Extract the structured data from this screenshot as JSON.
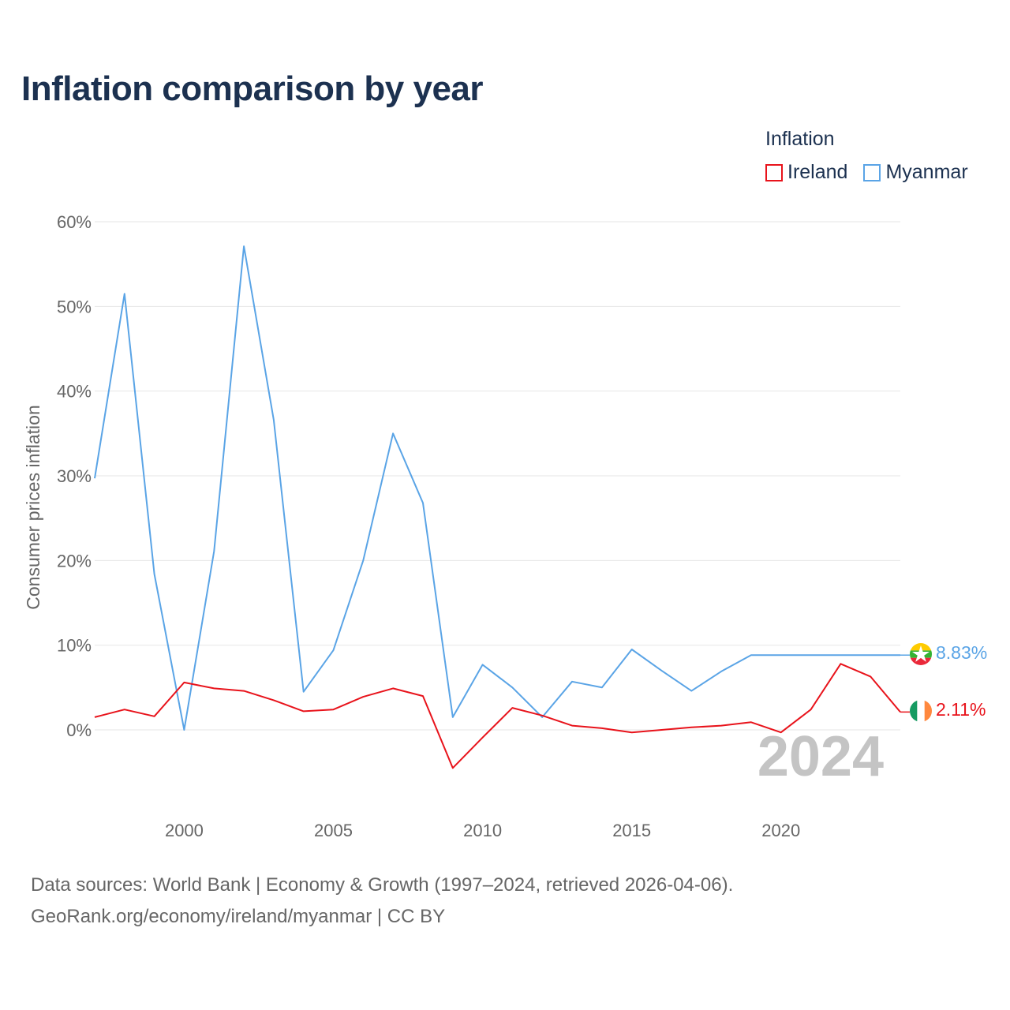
{
  "title": "Inflation comparison by year",
  "legend": {
    "title": "Inflation",
    "items": [
      {
        "label": "Ireland",
        "color": "#e8131b"
      },
      {
        "label": "Myanmar",
        "color": "#5aa4e6"
      }
    ]
  },
  "footer": {
    "line1": "Data sources: World Bank | Economy & Growth (1997–2024, retrieved 2026-04-06).",
    "line2": "GeoRank.org/economy/ireland/myanmar | CC BY"
  },
  "chart_data": {
    "type": "line",
    "title": "Inflation comparison by year",
    "xlabel": "",
    "ylabel": "Consumer prices inflation",
    "year_watermark": "2024",
    "xlim": [
      1997,
      2024
    ],
    "ylim": [
      -8,
      60
    ],
    "x_ticks": [
      2000,
      2005,
      2010,
      2015,
      2020
    ],
    "y_ticks": [
      0,
      10,
      20,
      30,
      40,
      50,
      60
    ],
    "y_tick_labels": [
      "0%",
      "10%",
      "20%",
      "30%",
      "40%",
      "50%",
      "60%"
    ],
    "grid": true,
    "legend_position": "top-right",
    "x": [
      1997,
      1998,
      1999,
      2000,
      2001,
      2002,
      2003,
      2004,
      2005,
      2006,
      2007,
      2008,
      2009,
      2010,
      2011,
      2012,
      2013,
      2014,
      2015,
      2016,
      2017,
      2018,
      2019,
      2020,
      2021,
      2022,
      2023,
      2024
    ],
    "series": [
      {
        "name": "Myanmar",
        "color": "#5aa4e6",
        "end_label": "8.83%",
        "flag": "myanmar",
        "values": [
          29.7,
          51.5,
          18.4,
          0.0,
          21.1,
          57.1,
          36.6,
          4.5,
          9.4,
          20.0,
          35.0,
          26.8,
          1.5,
          7.7,
          5.0,
          1.5,
          5.7,
          5.0,
          9.5,
          7.0,
          4.6,
          6.9,
          8.83,
          8.83,
          8.83,
          8.83,
          8.83,
          8.83
        ]
      },
      {
        "name": "Ireland",
        "color": "#e8131b",
        "end_label": "2.11%",
        "flag": "ireland",
        "values": [
          1.5,
          2.4,
          1.6,
          5.6,
          4.9,
          4.6,
          3.5,
          2.2,
          2.4,
          3.9,
          4.9,
          4.0,
          -4.5,
          -0.9,
          2.6,
          1.7,
          0.5,
          0.2,
          -0.3,
          0.0,
          0.3,
          0.5,
          0.9,
          -0.3,
          2.4,
          7.8,
          6.3,
          2.11
        ]
      }
    ]
  }
}
